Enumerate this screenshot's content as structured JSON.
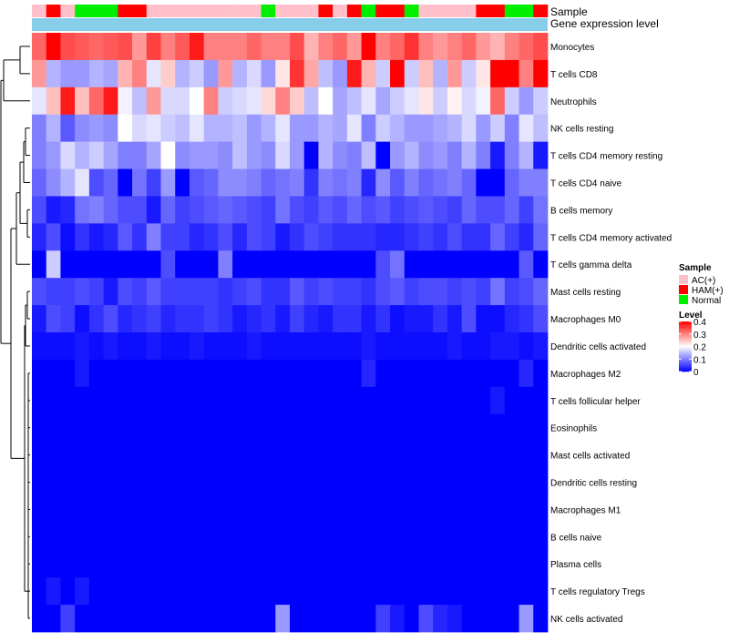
{
  "chart_data": {
    "type": "heatmap",
    "title": "",
    "annotation_labels": {
      "sample": "Sample",
      "expression": "Gene expression level"
    },
    "legend_sample": {
      "title": "Sample",
      "items": [
        {
          "label": "AC(+)",
          "color": "#ffc0cb"
        },
        {
          "label": "HAM(+)",
          "color": "#ff0000"
        },
        {
          "label": "Normal",
          "color": "#00ee00"
        }
      ]
    },
    "legend_level": {
      "title": "Level",
      "ticks": [
        "0.4",
        "0.3",
        "0.2",
        "0.1",
        "0"
      ],
      "tick_values": [
        0.4,
        0.3,
        0.2,
        0.1,
        0
      ],
      "range": [
        0,
        0.4
      ]
    },
    "colors": {
      "low": "#0000ff",
      "mid": "#ffffff",
      "high": "#ff0000",
      "expression_bar": "#87ceeb"
    },
    "samples": [
      "AC(+)",
      "HAM(+)",
      "AC(+)",
      "Normal",
      "Normal",
      "Normal",
      "HAM(+)",
      "HAM(+)",
      "AC(+)",
      "AC(+)",
      "AC(+)",
      "AC(+)",
      "AC(+)",
      "AC(+)",
      "AC(+)",
      "AC(+)",
      "Normal",
      "AC(+)",
      "AC(+)",
      "AC(+)",
      "HAM(+)",
      "AC(+)",
      "HAM(+)",
      "Normal",
      "HAM(+)",
      "HAM(+)",
      "Normal",
      "AC(+)",
      "AC(+)",
      "AC(+)",
      "AC(+)",
      "HAM(+)",
      "HAM(+)",
      "Normal",
      "Normal",
      "HAM(+)"
    ],
    "rows": [
      "Monocytes",
      "T cells CD8",
      "Neutrophils",
      "NK cells resting",
      "T cells CD4 memory resting",
      "T cells CD4 naive",
      "B cells memory",
      "T cells CD4 memory activated",
      "T cells gamma delta",
      "Mast cells resting",
      "Macrophages M0",
      "Dendritic cells activated",
      "Macrophages M2",
      "T cells follicular helper",
      "Eosinophils",
      "Mast cells activated",
      "Dendritic cells resting",
      "Macrophages M1",
      "B cells naive",
      "Plasma cells",
      "T cells regulatory  Tregs",
      "NK cells activated"
    ],
    "values": [
      [
        0.32,
        0.4,
        0.34,
        0.33,
        0.32,
        0.33,
        0.34,
        0.28,
        0.35,
        0.3,
        0.33,
        0.38,
        0.3,
        0.3,
        0.3,
        0.32,
        0.3,
        0.3,
        0.34,
        0.26,
        0.3,
        0.32,
        0.28,
        0.4,
        0.3,
        0.32,
        0.36,
        0.3,
        0.28,
        0.3,
        0.32,
        0.28,
        0.26,
        0.3,
        0.32,
        0.34
      ],
      [
        0.28,
        0.14,
        0.12,
        0.12,
        0.14,
        0.13,
        0.26,
        0.3,
        0.18,
        0.24,
        0.14,
        0.16,
        0.12,
        0.28,
        0.14,
        0.17,
        0.12,
        0.22,
        0.36,
        0.27,
        0.15,
        0.12,
        0.38,
        0.26,
        0.16,
        0.4,
        0.16,
        0.25,
        0.14,
        0.28,
        0.16,
        0.22,
        0.4,
        0.4,
        0.3,
        0.4
      ],
      [
        0.18,
        0.25,
        0.38,
        0.25,
        0.32,
        0.38,
        0.19,
        0.15,
        0.28,
        0.17,
        0.17,
        0.2,
        0.3,
        0.16,
        0.17,
        0.18,
        0.23,
        0.3,
        0.24,
        0.15,
        0.2,
        0.13,
        0.15,
        0.18,
        0.13,
        0.16,
        0.18,
        0.22,
        0.16,
        0.21,
        0.17,
        0.19,
        0.32,
        0.16,
        0.12,
        0.16
      ],
      [
        0.1,
        0.14,
        0.07,
        0.11,
        0.12,
        0.11,
        0.2,
        0.17,
        0.18,
        0.16,
        0.15,
        0.18,
        0.14,
        0.14,
        0.15,
        0.12,
        0.14,
        0.18,
        0.12,
        0.12,
        0.14,
        0.13,
        0.18,
        0.1,
        0.16,
        0.14,
        0.12,
        0.12,
        0.13,
        0.14,
        0.17,
        0.12,
        0.16,
        0.1,
        0.18,
        0.15
      ],
      [
        0.1,
        0.12,
        0.17,
        0.14,
        0.16,
        0.13,
        0.1,
        0.1,
        0.13,
        0.2,
        0.11,
        0.12,
        0.12,
        0.11,
        0.15,
        0.12,
        0.11,
        0.17,
        0.12,
        0.0,
        0.14,
        0.11,
        0.1,
        0.15,
        0.0,
        0.12,
        0.14,
        0.11,
        0.12,
        0.1,
        0.14,
        0.1,
        0.02,
        0.1,
        0.14,
        0.02
      ],
      [
        0.08,
        0.11,
        0.14,
        0.18,
        0.06,
        0.08,
        0.0,
        0.09,
        0.05,
        0.12,
        0.0,
        0.07,
        0.08,
        0.11,
        0.11,
        0.1,
        0.08,
        0.09,
        0.1,
        0.04,
        0.1,
        0.09,
        0.1,
        0.03,
        0.11,
        0.07,
        0.1,
        0.08,
        0.09,
        0.1,
        0.08,
        0.0,
        0.0,
        0.08,
        0.1,
        0.1
      ],
      [
        0.06,
        0.02,
        0.03,
        0.09,
        0.1,
        0.08,
        0.06,
        0.06,
        0.02,
        0.08,
        0.05,
        0.06,
        0.07,
        0.08,
        0.07,
        0.06,
        0.05,
        0.09,
        0.06,
        0.05,
        0.07,
        0.06,
        0.08,
        0.06,
        0.07,
        0.05,
        0.06,
        0.07,
        0.06,
        0.05,
        0.08,
        0.06,
        0.06,
        0.08,
        0.05,
        0.09
      ],
      [
        0.03,
        0.06,
        0.01,
        0.04,
        0.02,
        0.03,
        0.07,
        0.04,
        0.1,
        0.05,
        0.05,
        0.03,
        0.04,
        0.06,
        0.03,
        0.06,
        0.05,
        0.02,
        0.04,
        0.06,
        0.05,
        0.04,
        0.04,
        0.04,
        0.03,
        0.03,
        0.04,
        0.05,
        0.04,
        0.06,
        0.04,
        0.04,
        0.08,
        0.05,
        0.03,
        0.08
      ],
      [
        0.0,
        0.16,
        0.0,
        0.0,
        0.0,
        0.0,
        0.0,
        0.0,
        0.0,
        0.06,
        0.0,
        0.0,
        0.0,
        0.1,
        0.0,
        0.0,
        0.0,
        0.0,
        0.0,
        0.0,
        0.0,
        0.0,
        0.0,
        0.0,
        0.06,
        0.09,
        0.0,
        0.0,
        0.0,
        0.0,
        0.0,
        0.0,
        0.0,
        0.0,
        0.07,
        0.0
      ],
      [
        0.06,
        0.05,
        0.05,
        0.06,
        0.05,
        0.02,
        0.06,
        0.05,
        0.07,
        0.05,
        0.05,
        0.05,
        0.05,
        0.04,
        0.05,
        0.06,
        0.04,
        0.04,
        0.07,
        0.05,
        0.06,
        0.05,
        0.05,
        0.04,
        0.06,
        0.07,
        0.05,
        0.06,
        0.06,
        0.05,
        0.06,
        0.05,
        0.09,
        0.05,
        0.06,
        0.08
      ],
      [
        0.02,
        0.06,
        0.05,
        0.01,
        0.04,
        0.06,
        0.03,
        0.04,
        0.05,
        0.03,
        0.04,
        0.04,
        0.05,
        0.04,
        0.02,
        0.03,
        0.04,
        0.02,
        0.05,
        0.03,
        0.02,
        0.04,
        0.04,
        0.02,
        0.04,
        0.01,
        0.02,
        0.02,
        0.04,
        0.02,
        0.06,
        0.01,
        0.01,
        0.03,
        0.04,
        0.06
      ],
      [
        0.01,
        0.01,
        0.01,
        0.02,
        0.01,
        0.02,
        0.01,
        0.01,
        0.02,
        0.01,
        0.01,
        0.02,
        0.01,
        0.01,
        0.01,
        0.02,
        0.01,
        0.01,
        0.01,
        0.01,
        0.01,
        0.01,
        0.01,
        0.02,
        0.01,
        0.01,
        0.01,
        0.01,
        0.01,
        0.02,
        0.01,
        0.01,
        0.02,
        0.02,
        0.01,
        0.02
      ],
      [
        0.0,
        0.0,
        0.0,
        0.02,
        0.0,
        0.0,
        0.0,
        0.0,
        0.0,
        0.0,
        0.0,
        0.0,
        0.0,
        0.0,
        0.0,
        0.0,
        0.0,
        0.0,
        0.0,
        0.0,
        0.0,
        0.0,
        0.0,
        0.03,
        0.0,
        0.0,
        0.0,
        0.0,
        0.0,
        0.0,
        0.0,
        0.0,
        0.0,
        0.0,
        0.03,
        0.0
      ],
      [
        0.0,
        0.0,
        0.0,
        0.0,
        0.0,
        0.0,
        0.0,
        0.0,
        0.0,
        0.0,
        0.0,
        0.0,
        0.0,
        0.0,
        0.0,
        0.0,
        0.0,
        0.0,
        0.0,
        0.0,
        0.0,
        0.0,
        0.0,
        0.0,
        0.0,
        0.0,
        0.0,
        0.0,
        0.0,
        0.0,
        0.0,
        0.0,
        0.02,
        0.0,
        0.0,
        0.0
      ],
      [
        0.0,
        0.0,
        0.0,
        0.0,
        0.0,
        0.0,
        0.0,
        0.0,
        0.0,
        0.0,
        0.0,
        0.0,
        0.0,
        0.0,
        0.0,
        0.0,
        0.0,
        0.0,
        0.0,
        0.0,
        0.0,
        0.0,
        0.0,
        0.0,
        0.0,
        0.0,
        0.0,
        0.0,
        0.0,
        0.0,
        0.0,
        0.0,
        0.0,
        0.0,
        0.0,
        0.0
      ],
      [
        0.0,
        0.0,
        0.0,
        0.0,
        0.0,
        0.0,
        0.0,
        0.0,
        0.0,
        0.0,
        0.0,
        0.0,
        0.0,
        0.0,
        0.0,
        0.0,
        0.0,
        0.0,
        0.0,
        0.0,
        0.0,
        0.0,
        0.0,
        0.0,
        0.0,
        0.0,
        0.0,
        0.0,
        0.0,
        0.0,
        0.0,
        0.0,
        0.0,
        0.0,
        0.0,
        0.0
      ],
      [
        0.0,
        0.0,
        0.0,
        0.0,
        0.0,
        0.0,
        0.0,
        0.0,
        0.0,
        0.0,
        0.0,
        0.0,
        0.0,
        0.0,
        0.0,
        0.0,
        0.0,
        0.0,
        0.0,
        0.0,
        0.0,
        0.0,
        0.0,
        0.0,
        0.0,
        0.0,
        0.0,
        0.0,
        0.0,
        0.0,
        0.0,
        0.0,
        0.0,
        0.0,
        0.0,
        0.0
      ],
      [
        0.0,
        0.0,
        0.0,
        0.0,
        0.0,
        0.0,
        0.0,
        0.0,
        0.0,
        0.0,
        0.0,
        0.0,
        0.0,
        0.0,
        0.0,
        0.0,
        0.0,
        0.0,
        0.0,
        0.0,
        0.0,
        0.0,
        0.0,
        0.0,
        0.0,
        0.0,
        0.0,
        0.0,
        0.0,
        0.0,
        0.0,
        0.0,
        0.0,
        0.0,
        0.0,
        0.0
      ],
      [
        0.0,
        0.0,
        0.0,
        0.0,
        0.0,
        0.0,
        0.0,
        0.0,
        0.0,
        0.0,
        0.0,
        0.0,
        0.0,
        0.0,
        0.0,
        0.0,
        0.0,
        0.0,
        0.0,
        0.0,
        0.0,
        0.0,
        0.0,
        0.0,
        0.0,
        0.0,
        0.0,
        0.0,
        0.0,
        0.0,
        0.0,
        0.0,
        0.0,
        0.0,
        0.0,
        0.0
      ],
      [
        0.0,
        0.0,
        0.0,
        0.0,
        0.0,
        0.0,
        0.0,
        0.0,
        0.0,
        0.0,
        0.0,
        0.0,
        0.0,
        0.0,
        0.0,
        0.0,
        0.0,
        0.0,
        0.0,
        0.0,
        0.0,
        0.0,
        0.0,
        0.0,
        0.0,
        0.0,
        0.0,
        0.0,
        0.0,
        0.0,
        0.0,
        0.0,
        0.0,
        0.0,
        0.0,
        0.0
      ],
      [
        0.0,
        0.02,
        0.0,
        0.02,
        0.0,
        0.0,
        0.0,
        0.0,
        0.0,
        0.0,
        0.0,
        0.0,
        0.0,
        0.0,
        0.0,
        0.0,
        0.0,
        0.0,
        0.0,
        0.0,
        0.0,
        0.0,
        0.0,
        0.0,
        0.0,
        0.0,
        0.0,
        0.0,
        0.0,
        0.0,
        0.0,
        0.0,
        0.0,
        0.0,
        0.0,
        0.0
      ],
      [
        0.0,
        0.0,
        0.05,
        0.0,
        0.0,
        0.0,
        0.0,
        0.0,
        0.0,
        0.0,
        0.0,
        0.0,
        0.0,
        0.0,
        0.0,
        0.0,
        0.0,
        0.12,
        0.0,
        0.0,
        0.0,
        0.0,
        0.0,
        0.0,
        0.05,
        0.02,
        0.0,
        0.06,
        0.03,
        0.02,
        0.0,
        0.0,
        0.0,
        0.0,
        0.12,
        0.0
      ]
    ]
  }
}
